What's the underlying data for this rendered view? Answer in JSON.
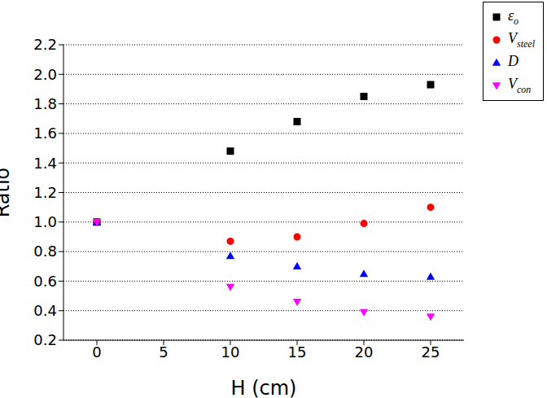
{
  "chart_data": {
    "type": "scatter",
    "x_label": "H (cm)",
    "y_label": "Ratio",
    "x": [
      0,
      10,
      15,
      20,
      25
    ],
    "xlim": [
      -2.5,
      27.5
    ],
    "xticks": [
      0,
      5,
      10,
      15,
      20,
      25
    ],
    "ylim": [
      0.2,
      2.2
    ],
    "yticks": [
      0.2,
      0.4,
      0.6,
      0.8,
      {
        "value": 1.0,
        "label": "1.0"
      },
      1.2,
      1.4,
      1.6,
      1.8,
      {
        "value": 2.0,
        "label": "2.0"
      },
      2.2
    ],
    "grid": true,
    "legend": "top right",
    "series": [
      {
        "name": "εo",
        "color": "#000000",
        "marker": "square",
        "values": [
          1.0,
          1.48,
          1.68,
          1.85,
          1.93
        ]
      },
      {
        "name": "Vsteel",
        "color": "#ff0000",
        "marker": "circle",
        "values": [
          1.0,
          0.87,
          0.9,
          0.99,
          1.1
        ]
      },
      {
        "name": "D",
        "color": "#0000ff",
        "marker": "triangle",
        "values": [
          1.0,
          0.77,
          0.7,
          0.65,
          0.63
        ]
      },
      {
        "name": "Vcon",
        "color": "#ff00ff",
        "marker": "triangle-down",
        "values": [
          1.0,
          0.56,
          0.46,
          0.39,
          0.36
        ]
      }
    ]
  }
}
